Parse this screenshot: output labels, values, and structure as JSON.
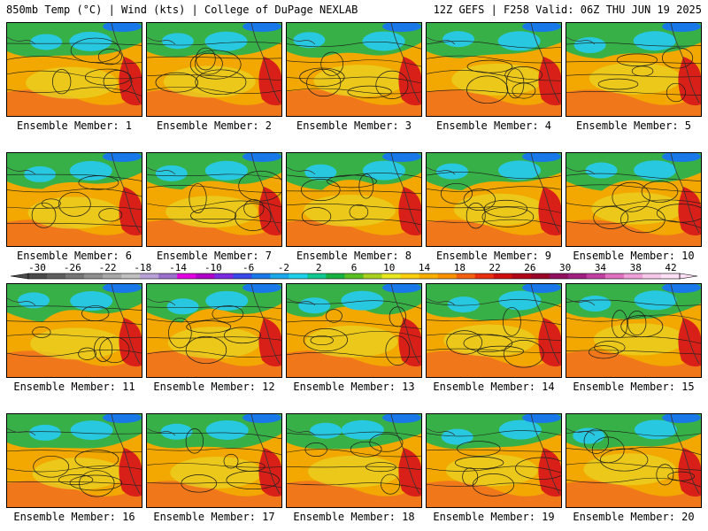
{
  "header": {
    "left": "850mb Temp (°C) | Wind (kts) | College of DuPage NEXLAB",
    "right": "12Z GEFS | F258 Valid: 06Z THU JUN 19 2025"
  },
  "member_label_prefix": "Ensemble Member: ",
  "members": [
    "1",
    "2",
    "3",
    "4",
    "5",
    "6",
    "7",
    "8",
    "9",
    "10",
    "11",
    "12",
    "13",
    "14",
    "15",
    "16",
    "17",
    "18",
    "19",
    "20"
  ],
  "colorbar": {
    "tick_labels": [
      "-30",
      "-26",
      "-22",
      "-18",
      "-14",
      "-10",
      "-6",
      "-2",
      "2",
      "6",
      "10",
      "14",
      "18",
      "22",
      "26",
      "30",
      "34",
      "38",
      "42"
    ],
    "colors": [
      "#4a4a4a",
      "#5e5e5e",
      "#767676",
      "#8e8e8e",
      "#a8a8a8",
      "#c0c0c0",
      "#b8a0d8",
      "#9a70cc",
      "#e000e0",
      "#b000c8",
      "#7a2ae0",
      "#3a4ae8",
      "#1a78e8",
      "#1aa8e8",
      "#20d0e8",
      "#10c890",
      "#18b040",
      "#58c020",
      "#a8d020",
      "#e8e820",
      "#f8d010",
      "#f8b000",
      "#f89000",
      "#f06010",
      "#e83010",
      "#d01010",
      "#b00818",
      "#980828",
      "#901060",
      "#a02080",
      "#c040a0",
      "#e070c0",
      "#f0a0d8",
      "#f8c8e8",
      "#ffe0f4"
    ]
  },
  "map_colors": {
    "warm": "#f2a800",
    "hot": "#f07020",
    "very_hot": "#d82018",
    "mild": "#e8d020",
    "cool_green": "#38b048",
    "cold_cyan": "#28c8e0",
    "cold_blue": "#1878e8",
    "contour": "#1a1a1a",
    "coast": "#333333"
  }
}
